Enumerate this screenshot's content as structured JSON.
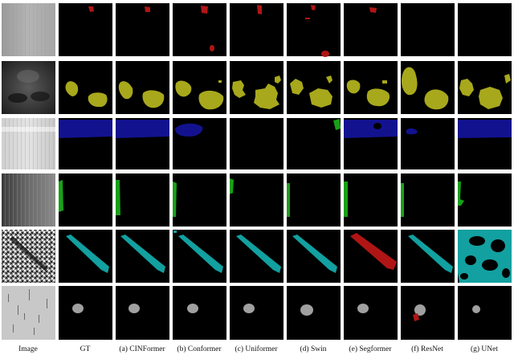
{
  "figure": {
    "columns": [
      "Image",
      "GT",
      "(a) CINFormer",
      "(b) Conformer",
      "(c) Uniformer",
      "(d) Swin",
      "(e) Segformer",
      "(f) ResNet",
      "(g) UNet"
    ],
    "rows": [
      {
        "defect_color": "#b01515",
        "image_style": "light-gray"
      },
      {
        "defect_color": "#a8a81c",
        "image_style": "dark-mottled"
      },
      {
        "defect_color": "#12128f",
        "image_style": "light-streaks"
      },
      {
        "defect_color": "#18a018",
        "image_style": "dark-gradient"
      },
      {
        "defect_color": "#12a0a0",
        "image_style": "noise"
      },
      {
        "defect_color": "#a0a0a0",
        "image_style": "light-dashes"
      }
    ]
  }
}
